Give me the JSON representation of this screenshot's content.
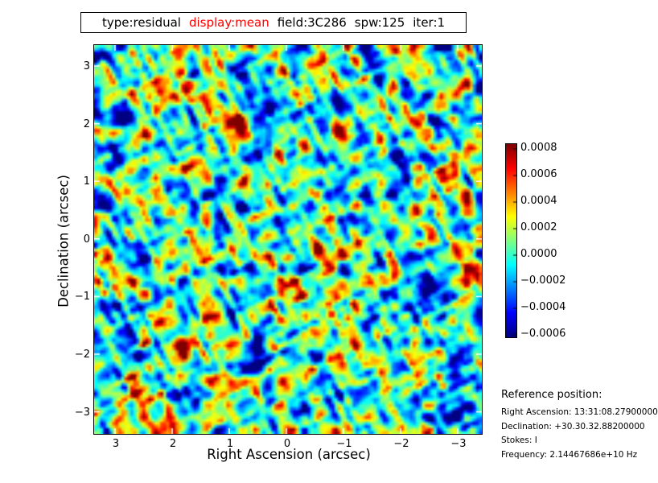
{
  "title_box": {
    "segments": [
      {
        "text": "type:residual",
        "color": "#000000"
      },
      {
        "text": "display:mean",
        "color": "#ff0000"
      },
      {
        "text": "field:3C286",
        "color": "#000000"
      },
      {
        "text": "spw:125",
        "color": "#000000"
      },
      {
        "text": "iter:1",
        "color": "#000000"
      }
    ]
  },
  "chart_data": {
    "type": "heatmap",
    "title": "type:residual display:mean field:3C286 spw:125 iter:1",
    "xlabel": "Right Ascension (arcsec)",
    "ylabel": "Declination (arcsec)",
    "x_ticks": [
      "3",
      "2",
      "1",
      "0",
      "−1",
      "−2",
      "−3"
    ],
    "y_ticks": [
      "3",
      "2",
      "1",
      "0",
      "−1",
      "−2",
      "−3"
    ],
    "xlim": [
      3.4,
      -3.4
    ],
    "ylim": [
      -3.4,
      3.4
    ],
    "grid": false,
    "colormap": "jet",
    "colorbar_ticks": [
      "0.0008",
      "0.0006",
      "0.0004",
      "0.0002",
      "0.0000",
      "−0.0002",
      "−0.0004",
      "−0.0006"
    ],
    "value_range": [
      -0.0006,
      0.0008
    ],
    "data_description": "Interferometric residual noise image of calibrator field 3C286: pixel values fluctuate about 0.0000 (cyan background) with typical blobs of about +0.0002 (yellow-green) and -0.0002 (blue), sparse peaks near +0.0008 (dark red) and troughs near -0.0006 (dark blue), organised in diagonal stripe artifacts.",
    "noise": {
      "octaves": [
        {
          "kind": "iso",
          "scale": 15.5,
          "weight": 0.5,
          "seed": 11
        },
        {
          "kind": "stripe",
          "along": 44,
          "across": 7.6,
          "dir": [
            0.45,
            0.893
          ],
          "weight": 0.42,
          "seed": 23
        },
        {
          "kind": "stripe",
          "along": 40,
          "across": 7.2,
          "dir": [
            0.893,
            -0.45
          ],
          "weight": 0.3,
          "seed": 37
        },
        {
          "kind": "iso",
          "scale": 7.5,
          "weight": 0.2,
          "seed": 53
        }
      ],
      "t_base": 0.44,
      "t_lin": 0.62,
      "t_cub": 0.26
    }
  },
  "reference": {
    "heading": "Reference position:",
    "lines": [
      "Right Ascension: 13:31:08.27900000",
      "Declination: +30.30.32.88200000",
      "Stokes: I",
      "Frequency: 2.14467686e+10 Hz"
    ]
  }
}
